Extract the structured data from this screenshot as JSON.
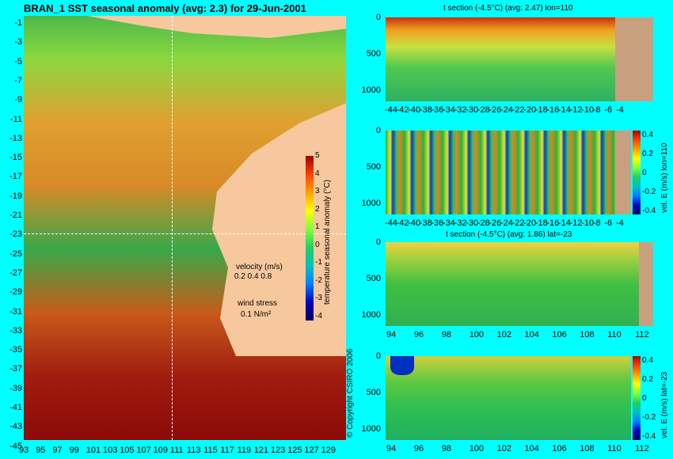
{
  "map": {
    "title": "BRAN_1 SST seasonal anomaly (avg: 2.3) for 29-Jun-2001",
    "lat_ticks": [
      "-1",
      "-3",
      "-5",
      "-7",
      "-9",
      "-11",
      "-13",
      "-15",
      "-17",
      "-19",
      "-21",
      "-23",
      "-25",
      "-27",
      "-29",
      "-31",
      "-33",
      "-35",
      "-37",
      "-39",
      "-41",
      "-43",
      "-45"
    ],
    "lon_ticks": [
      "93",
      "95",
      "97",
      "99",
      "101",
      "103",
      "105",
      "107",
      "109",
      "111",
      "113",
      "115",
      "117",
      "119",
      "121",
      "123",
      "125",
      "127",
      "129"
    ],
    "colorbar_label": "temperature seasonal anomaly (°C)",
    "colorbar_ticks": [
      "5",
      "4",
      "3",
      "2",
      "1",
      "0",
      "-1",
      "-2",
      "-3",
      "-4"
    ],
    "velocity_label": "velocity (m/s)",
    "velocity_scale": "0.2 0.4 0.8",
    "wind_label": "wind stress",
    "wind_scale": "0.1 N/m²",
    "copyright": "© Copyright CSIRO 2006"
  },
  "panels": [
    {
      "title": "t section (-4.5°C) (avg: 2.47) lon=110",
      "y_ticks": [
        "0",
        "500",
        "1000"
      ],
      "x_ticks": [
        "-44",
        "-42",
        "-40",
        "-38",
        "-36",
        "-34",
        "-32",
        "-30",
        "-28",
        "-26",
        "-24",
        "-22",
        "-20",
        "-18",
        "-16",
        "-14",
        "-12",
        "-10",
        "-8",
        "-6",
        "-4"
      ],
      "colorbar_label": "",
      "colorbar_ticks": []
    },
    {
      "title": "",
      "y_ticks": [
        "0",
        "500",
        "1000"
      ],
      "x_ticks": [
        "-44",
        "-42",
        "-40",
        "-38",
        "-36",
        "-34",
        "-32",
        "-30",
        "-28",
        "-26",
        "-24",
        "-22",
        "-20",
        "-18",
        "-16",
        "-14",
        "-12",
        "-10",
        "-8",
        "-6",
        "-4"
      ],
      "colorbar_label": "vel. E (m/s) lon=110",
      "colorbar_ticks": [
        "0.4",
        "0.2",
        "0",
        "-0.2",
        "-0.4"
      ]
    },
    {
      "title": "t section (-4.5°C) (avg: 1.86) lat=-23",
      "y_ticks": [
        "0",
        "500",
        "1000"
      ],
      "x_ticks": [
        "94",
        "96",
        "98",
        "100",
        "102",
        "104",
        "106",
        "108",
        "110",
        "112"
      ],
      "colorbar_label": "",
      "colorbar_ticks": []
    },
    {
      "title": "",
      "y_ticks": [
        "0",
        "500",
        "1000"
      ],
      "x_ticks": [
        "94",
        "96",
        "98",
        "100",
        "102",
        "104",
        "106",
        "108",
        "110",
        "112"
      ],
      "colorbar_label": "vel. E (m/s) lat=-23",
      "colorbar_ticks": [
        "0.4",
        "0.2",
        "0",
        "-0.2",
        "-0.4"
      ]
    }
  ]
}
